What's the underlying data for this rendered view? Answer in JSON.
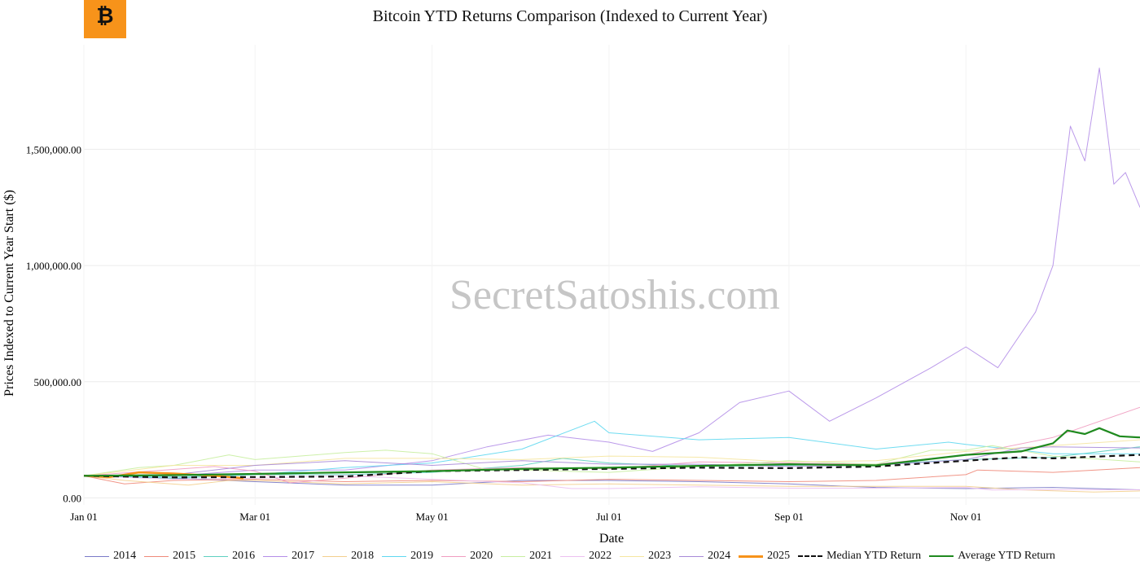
{
  "logo": {
    "glyph": "₿",
    "icon": "bitcoin-logo-icon",
    "color": "#f7931a"
  },
  "watermark": "SecretSatoshis.com",
  "chart_data": {
    "type": "line",
    "title": "Bitcoin YTD Returns Comparison (Indexed to Current Year)",
    "xlabel": "Date",
    "ylabel": "Prices Indexed to Current Year Start ($)",
    "ylim": [
      -30000,
      1950000
    ],
    "y_ticks": [
      0,
      500000,
      1000000,
      1500000
    ],
    "y_tick_labels": [
      "0.00",
      "500,000.00",
      "1,000,000.00",
      "1,500,000.00"
    ],
    "x_domain": [
      "01-01",
      "12-31"
    ],
    "x_ticks": [
      "01-01",
      "03-01",
      "05-01",
      "07-01",
      "09-01",
      "11-01"
    ],
    "x_tick_labels": [
      "Jan 01",
      "Mar 01",
      "May 01",
      "Jul 01",
      "Sep 01",
      "Nov 01"
    ],
    "grid": true,
    "legend_position": "bottom",
    "series": [
      {
        "name": "2014",
        "color": "#7a7ac8",
        "points": [
          [
            "01-01",
            95000
          ],
          [
            "02-01",
            85000
          ],
          [
            "03-01",
            70000
          ],
          [
            "04-01",
            55000
          ],
          [
            "05-01",
            55000
          ],
          [
            "06-01",
            75000
          ],
          [
            "07-01",
            75000
          ],
          [
            "08-01",
            70000
          ],
          [
            "09-01",
            60000
          ],
          [
            "10-01",
            45000
          ],
          [
            "11-01",
            40000
          ],
          [
            "12-01",
            45000
          ],
          [
            "12-31",
            35000
          ]
        ]
      },
      {
        "name": "2015",
        "color": "#ef8a7a",
        "points": [
          [
            "01-01",
            95000
          ],
          [
            "01-15",
            60000
          ],
          [
            "02-01",
            75000
          ],
          [
            "03-01",
            80000
          ],
          [
            "04-01",
            70000
          ],
          [
            "05-01",
            75000
          ],
          [
            "06-01",
            70000
          ],
          [
            "07-01",
            80000
          ],
          [
            "08-01",
            75000
          ],
          [
            "09-01",
            70000
          ],
          [
            "10-01",
            75000
          ],
          [
            "11-01",
            100000
          ],
          [
            "11-05",
            120000
          ],
          [
            "12-01",
            110000
          ],
          [
            "12-31",
            130000
          ]
        ]
      },
      {
        "name": "2016",
        "color": "#5fd0c0",
        "points": [
          [
            "01-01",
            95000
          ],
          [
            "02-01",
            85000
          ],
          [
            "03-01",
            100000
          ],
          [
            "04-01",
            100000
          ],
          [
            "05-01",
            110000
          ],
          [
            "06-01",
            140000
          ],
          [
            "06-15",
            170000
          ],
          [
            "07-01",
            150000
          ],
          [
            "08-01",
            135000
          ],
          [
            "09-01",
            140000
          ],
          [
            "10-01",
            145000
          ],
          [
            "11-01",
            165000
          ],
          [
            "12-01",
            175000
          ],
          [
            "12-31",
            220000
          ]
        ]
      },
      {
        "name": "2017",
        "color": "#b48ee8",
        "points": [
          [
            "01-01",
            95000
          ],
          [
            "02-01",
            95000
          ],
          [
            "03-01",
            120000
          ],
          [
            "04-01",
            120000
          ],
          [
            "05-01",
            160000
          ],
          [
            "05-20",
            220000
          ],
          [
            "06-10",
            270000
          ],
          [
            "07-01",
            240000
          ],
          [
            "07-16",
            200000
          ],
          [
            "08-01",
            280000
          ],
          [
            "08-15",
            410000
          ],
          [
            "09-01",
            460000
          ],
          [
            "09-15",
            330000
          ],
          [
            "10-01",
            430000
          ],
          [
            "10-20",
            560000
          ],
          [
            "11-01",
            650000
          ],
          [
            "11-12",
            560000
          ],
          [
            "11-25",
            800000
          ],
          [
            "12-01",
            1000000
          ],
          [
            "12-07",
            1600000
          ],
          [
            "12-12",
            1450000
          ],
          [
            "12-17",
            1850000
          ],
          [
            "12-22",
            1350000
          ],
          [
            "12-26",
            1400000
          ],
          [
            "12-31",
            1250000
          ]
        ]
      },
      {
        "name": "2018",
        "color": "#f3cf8e",
        "points": [
          [
            "01-01",
            95000
          ],
          [
            "01-15",
            75000
          ],
          [
            "02-06",
            55000
          ],
          [
            "02-20",
            75000
          ],
          [
            "03-01",
            75000
          ],
          [
            "04-01",
            60000
          ],
          [
            "05-01",
            70000
          ],
          [
            "06-01",
            55000
          ],
          [
            "07-01",
            60000
          ],
          [
            "08-01",
            55000
          ],
          [
            "09-01",
            50000
          ],
          [
            "10-01",
            50000
          ],
          [
            "11-01",
            50000
          ],
          [
            "11-20",
            35000
          ],
          [
            "12-15",
            25000
          ],
          [
            "12-31",
            30000
          ]
        ]
      },
      {
        "name": "2019",
        "color": "#5fd8f0",
        "points": [
          [
            "01-01",
            95000
          ],
          [
            "02-01",
            90000
          ],
          [
            "03-01",
            100000
          ],
          [
            "04-01",
            130000
          ],
          [
            "05-01",
            150000
          ],
          [
            "06-01",
            210000
          ],
          [
            "06-26",
            330000
          ],
          [
            "07-01",
            280000
          ],
          [
            "08-01",
            250000
          ],
          [
            "09-01",
            260000
          ],
          [
            "10-01",
            210000
          ],
          [
            "10-26",
            240000
          ],
          [
            "11-01",
            230000
          ],
          [
            "12-01",
            190000
          ],
          [
            "12-31",
            190000
          ]
        ]
      },
      {
        "name": "2020",
        "color": "#f09cc0",
        "points": [
          [
            "01-01",
            95000
          ],
          [
            "02-15",
            135000
          ],
          [
            "03-01",
            115000
          ],
          [
            "03-13",
            65000
          ],
          [
            "04-01",
            85000
          ],
          [
            "05-01",
            120000
          ],
          [
            "06-01",
            130000
          ],
          [
            "07-01",
            125000
          ],
          [
            "08-01",
            155000
          ],
          [
            "09-01",
            150000
          ],
          [
            "10-01",
            145000
          ],
          [
            "11-01",
            185000
          ],
          [
            "12-01",
            260000
          ],
          [
            "12-31",
            390000
          ]
        ]
      },
      {
        "name": "2021",
        "color": "#c8eea0",
        "points": [
          [
            "01-01",
            95000
          ],
          [
            "01-20",
            130000
          ],
          [
            "02-01",
            140000
          ],
          [
            "02-20",
            185000
          ],
          [
            "03-01",
            165000
          ],
          [
            "04-01",
            195000
          ],
          [
            "04-15",
            205000
          ],
          [
            "05-01",
            190000
          ],
          [
            "05-20",
            120000
          ],
          [
            "06-01",
            120000
          ],
          [
            "07-01",
            110000
          ],
          [
            "08-01",
            135000
          ],
          [
            "09-01",
            160000
          ],
          [
            "10-01",
            145000
          ],
          [
            "10-20",
            205000
          ],
          [
            "11-01",
            205000
          ],
          [
            "11-10",
            225000
          ],
          [
            "12-01",
            180000
          ],
          [
            "12-31",
            155000
          ]
        ]
      },
      {
        "name": "2022",
        "color": "#ecc0f0",
        "points": [
          [
            "01-01",
            95000
          ],
          [
            "02-01",
            80000
          ],
          [
            "03-01",
            85000
          ],
          [
            "04-01",
            95000
          ],
          [
            "05-01",
            80000
          ],
          [
            "06-01",
            65000
          ],
          [
            "06-18",
            40000
          ],
          [
            "07-01",
            40000
          ],
          [
            "08-01",
            48000
          ],
          [
            "09-01",
            42000
          ],
          [
            "10-01",
            42000
          ],
          [
            "11-01",
            45000
          ],
          [
            "11-10",
            34000
          ],
          [
            "12-01",
            36000
          ],
          [
            "12-31",
            35000
          ]
        ]
      },
      {
        "name": "2023",
        "color": "#f5e6a0",
        "points": [
          [
            "01-01",
            95000
          ],
          [
            "02-01",
            140000
          ],
          [
            "03-01",
            140000
          ],
          [
            "04-01",
            170000
          ],
          [
            "05-01",
            170000
          ],
          [
            "06-01",
            165000
          ],
          [
            "07-01",
            180000
          ],
          [
            "08-01",
            175000
          ],
          [
            "09-01",
            155000
          ],
          [
            "10-01",
            160000
          ],
          [
            "11-01",
            200000
          ],
          [
            "12-01",
            225000
          ],
          [
            "12-31",
            250000
          ]
        ]
      },
      {
        "name": "2024",
        "color": "#a88ad8",
        "points": [
          [
            "01-01",
            95000
          ],
          [
            "02-01",
            100000
          ],
          [
            "03-01",
            140000
          ],
          [
            "04-01",
            160000
          ],
          [
            "05-01",
            140000
          ],
          [
            "06-01",
            160000
          ],
          [
            "07-01",
            145000
          ],
          [
            "08-01",
            145000
          ],
          [
            "09-01",
            135000
          ],
          [
            "10-01",
            140000
          ],
          [
            "11-01",
            165000
          ],
          [
            "11-20",
            215000
          ],
          [
            "12-01",
            220000
          ],
          [
            "12-31",
            215000
          ]
        ]
      },
      {
        "name": "2025",
        "color": "#f7931a",
        "points": [
          [
            "01-01",
            95000
          ],
          [
            "01-10",
            90000
          ],
          [
            "01-20",
            110000
          ],
          [
            "02-01",
            105000
          ],
          [
            "02-15",
            95000
          ],
          [
            "02-25",
            85000
          ]
        ]
      },
      {
        "name": "Median YTD Return",
        "color": "#111111",
        "dash": true,
        "points": [
          [
            "01-01",
            95000
          ],
          [
            "02-01",
            88000
          ],
          [
            "03-01",
            90000
          ],
          [
            "04-01",
            92000
          ],
          [
            "05-01",
            115000
          ],
          [
            "06-01",
            120000
          ],
          [
            "07-01",
            125000
          ],
          [
            "08-01",
            130000
          ],
          [
            "09-01",
            128000
          ],
          [
            "10-01",
            135000
          ],
          [
            "11-01",
            160000
          ],
          [
            "11-20",
            175000
          ],
          [
            "12-01",
            170000
          ],
          [
            "12-31",
            185000
          ]
        ]
      },
      {
        "name": "Average YTD Return",
        "color": "#1f8a1f",
        "thick": true,
        "points": [
          [
            "01-01",
            95000
          ],
          [
            "02-01",
            98000
          ],
          [
            "03-01",
            103000
          ],
          [
            "04-01",
            110000
          ],
          [
            "05-01",
            115000
          ],
          [
            "06-01",
            125000
          ],
          [
            "07-01",
            130000
          ],
          [
            "08-01",
            138000
          ],
          [
            "09-01",
            145000
          ],
          [
            "10-01",
            140000
          ],
          [
            "11-01",
            185000
          ],
          [
            "11-20",
            200000
          ],
          [
            "12-01",
            235000
          ],
          [
            "12-06",
            290000
          ],
          [
            "12-12",
            275000
          ],
          [
            "12-17",
            300000
          ],
          [
            "12-24",
            265000
          ],
          [
            "12-31",
            260000
          ]
        ]
      }
    ]
  }
}
